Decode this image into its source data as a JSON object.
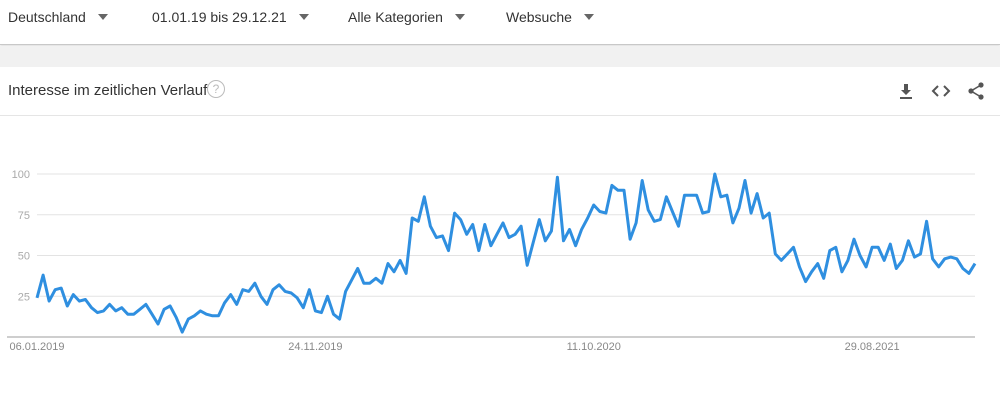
{
  "filters": {
    "region": "Deutschland",
    "date_range": "01.01.19 bis 29.12.21",
    "category": "Alle Kategorien",
    "search_type": "Websuche"
  },
  "card": {
    "title": "Interesse im zeitlichen Verlauf",
    "help_icon": "?",
    "icons": [
      "download-icon",
      "embed-code-icon",
      "share-icon"
    ]
  },
  "chart_data": {
    "type": "line",
    "title": "",
    "xlabel": "",
    "ylabel": "",
    "ylim": [
      0,
      100
    ],
    "yticks": [
      25,
      50,
      75,
      100
    ],
    "ytick_labels": [
      "25",
      "50",
      "75",
      "100"
    ],
    "xtick_labels": [
      "06.01.2019",
      "24.11.2019",
      "11.10.2020",
      "29.08.2021"
    ],
    "xtick_indices": [
      0,
      46,
      92,
      138
    ],
    "x_start": "06.01.2019",
    "x_interval": "weekly",
    "grid": true,
    "line_color": "#2f8fe0",
    "values": [
      24,
      38,
      22,
      29,
      30,
      19,
      26,
      22,
      23,
      18,
      15,
      16,
      20,
      16,
      18,
      14,
      14,
      17,
      20,
      14,
      8,
      17,
      19,
      12,
      3,
      11,
      13,
      16,
      14,
      13,
      13,
      21,
      26,
      20,
      29,
      28,
      33,
      25,
      20,
      29,
      32,
      28,
      27,
      24,
      18,
      29,
      16,
      15,
      25,
      14,
      11,
      28,
      35,
      42,
      33,
      33,
      36,
      33,
      45,
      40,
      47,
      39,
      73,
      71,
      86,
      68,
      61,
      62,
      53,
      76,
      72,
      63,
      69,
      53,
      69,
      56,
      63,
      70,
      61,
      63,
      68,
      44,
      58,
      72,
      59,
      65,
      98,
      59,
      66,
      56,
      66,
      73,
      81,
      77,
      76,
      93,
      90,
      90,
      60,
      70,
      96,
      78,
      71,
      72,
      86,
      77,
      68,
      87,
      87,
      87,
      76,
      77,
      100,
      86,
      87,
      70,
      79,
      96,
      76,
      88,
      73,
      76,
      51,
      47,
      51,
      55,
      43,
      34,
      40,
      45,
      36,
      53,
      55,
      40,
      47,
      60,
      50,
      43,
      55,
      55,
      47,
      57,
      42,
      47,
      59,
      49,
      51,
      71,
      48,
      43,
      48,
      49,
      48,
      42,
      39,
      45
    ]
  }
}
